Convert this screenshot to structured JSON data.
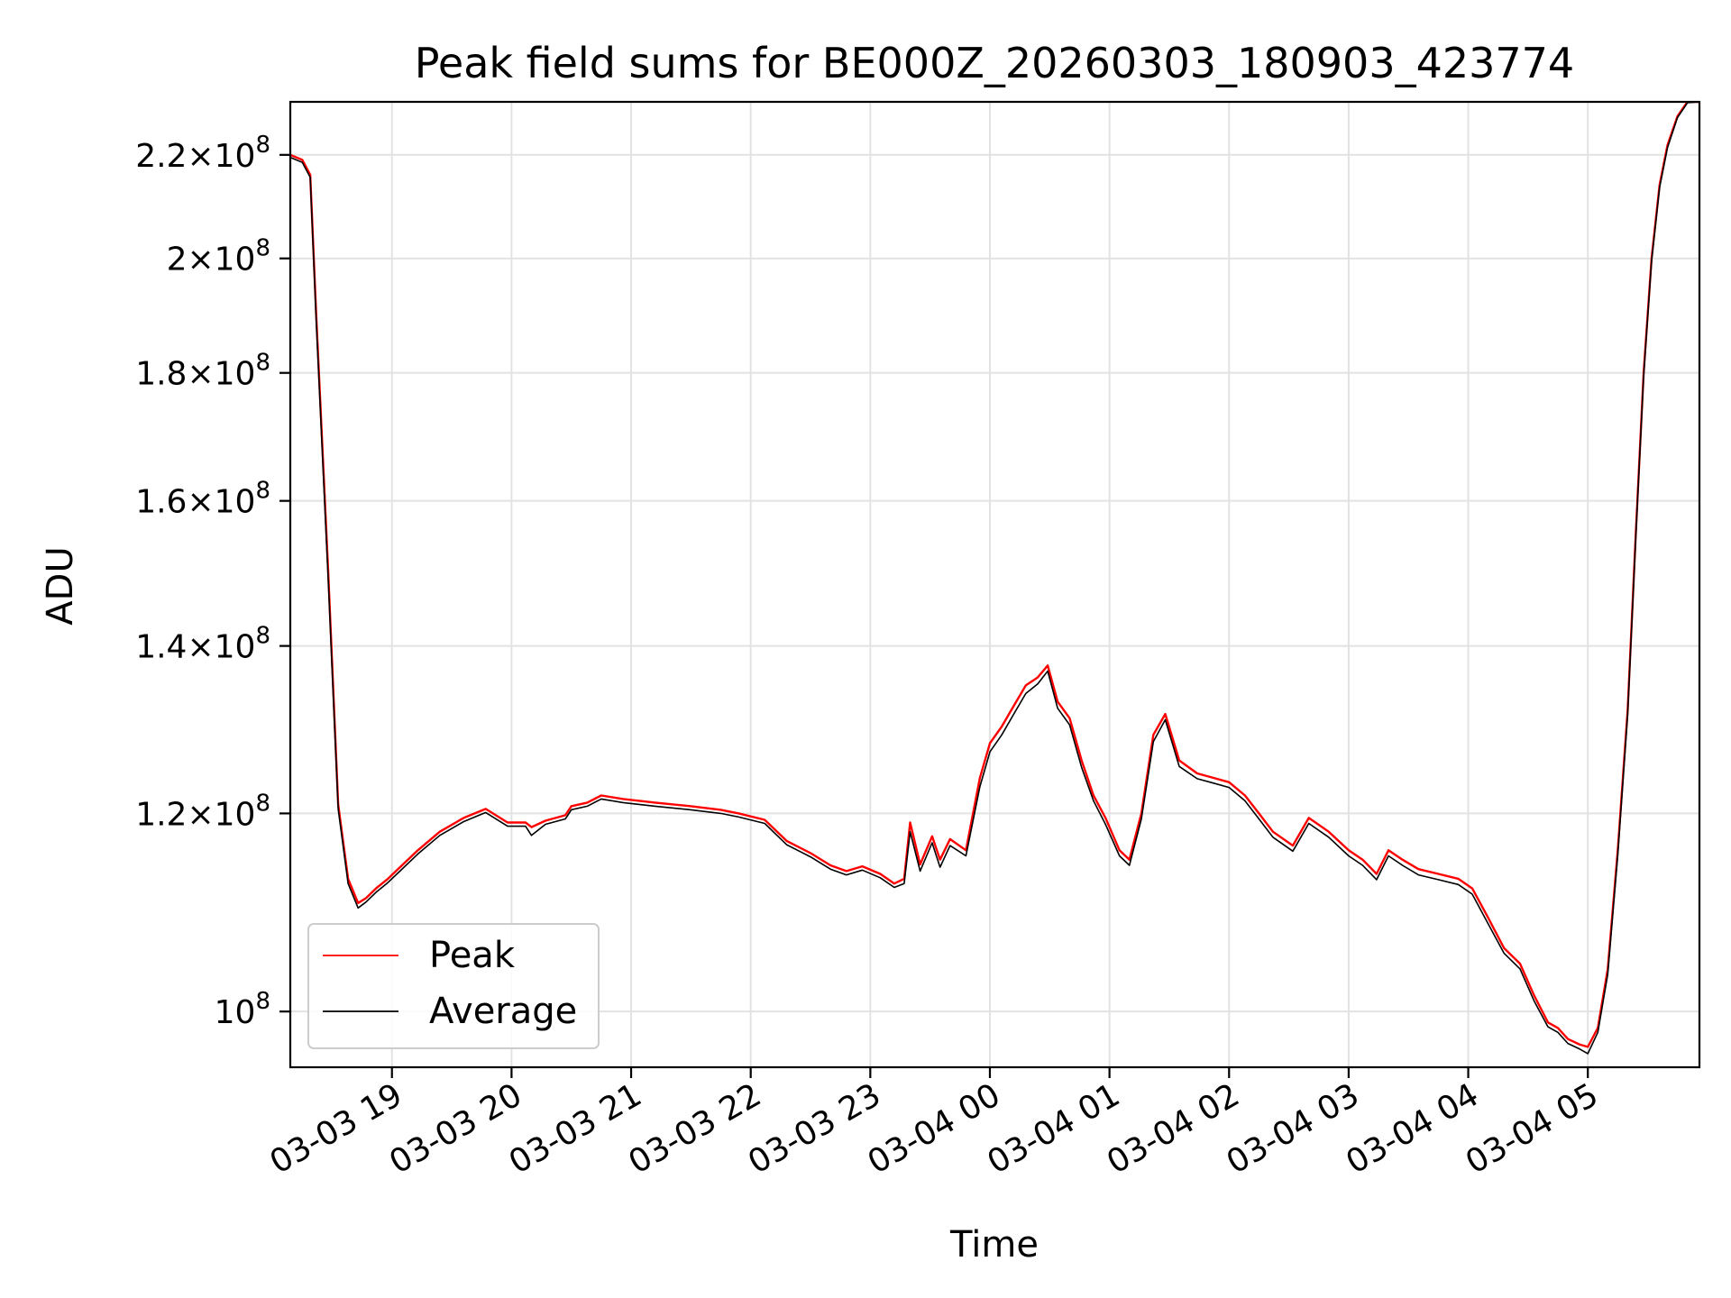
{
  "chart_data": {
    "type": "line",
    "title": "Peak field sums for BE000Z_20260303_180903_423774",
    "xlabel": "Time",
    "ylabel": "ADU",
    "x_axis_type": "datetime",
    "xlim": [
      "2026-03-03 18:09",
      "2026-03-04 05:56"
    ],
    "ylim": [
      95000000,
      231000000
    ],
    "y_scale": "log",
    "grid": true,
    "legend_position": "lower-left",
    "x_ticks": [
      {
        "value": "2026-03-03 19:00",
        "label": "03-03 19"
      },
      {
        "value": "2026-03-03 20:00",
        "label": "03-03 20"
      },
      {
        "value": "2026-03-03 21:00",
        "label": "03-03 21"
      },
      {
        "value": "2026-03-03 22:00",
        "label": "03-03 22"
      },
      {
        "value": "2026-03-03 23:00",
        "label": "03-03 23"
      },
      {
        "value": "2026-03-04 00:00",
        "label": "03-04 00"
      },
      {
        "value": "2026-03-04 01:00",
        "label": "03-04 01"
      },
      {
        "value": "2026-03-04 02:00",
        "label": "03-04 02"
      },
      {
        "value": "2026-03-04 03:00",
        "label": "03-04 03"
      },
      {
        "value": "2026-03-04 04:00",
        "label": "03-04 04"
      },
      {
        "value": "2026-03-04 05:00",
        "label": "03-04 05"
      }
    ],
    "y_ticks": [
      {
        "value": 100000000,
        "mantissa": "",
        "exponent": "8"
      },
      {
        "value": 120000000,
        "mantissa": "1.2",
        "exponent": "8"
      },
      {
        "value": 140000000,
        "mantissa": "1.4",
        "exponent": "8"
      },
      {
        "value": 160000000,
        "mantissa": "1.6",
        "exponent": "8"
      },
      {
        "value": 180000000,
        "mantissa": "1.8",
        "exponent": "8"
      },
      {
        "value": 200000000,
        "mantissa": "2",
        "exponent": "8"
      },
      {
        "value": 220000000,
        "mantissa": "2.2",
        "exponent": "8"
      }
    ],
    "series": [
      {
        "name": "Peak",
        "color": "#ff0000",
        "x": [
          "2026-03-03 18:09",
          "2026-03-03 18:15",
          "2026-03-03 18:19",
          "2026-03-03 18:22",
          "2026-03-03 18:28",
          "2026-03-03 18:33",
          "2026-03-03 18:38",
          "2026-03-03 18:43",
          "2026-03-03 18:47",
          "2026-03-03 18:52",
          "2026-03-03 18:58",
          "2026-03-03 19:03",
          "2026-03-03 19:13",
          "2026-03-03 19:24",
          "2026-03-03 19:36",
          "2026-03-03 19:47",
          "2026-03-03 19:58",
          "2026-03-03 20:07",
          "2026-03-03 20:10",
          "2026-03-03 20:17",
          "2026-03-03 20:27",
          "2026-03-03 20:30",
          "2026-03-03 20:38",
          "2026-03-03 20:45",
          "2026-03-03 20:56",
          "2026-03-03 21:12",
          "2026-03-03 21:30",
          "2026-03-03 21:45",
          "2026-03-03 21:54",
          "2026-03-03 22:07",
          "2026-03-03 22:18",
          "2026-03-03 22:30",
          "2026-03-03 22:40",
          "2026-03-03 22:48",
          "2026-03-03 22:56",
          "2026-03-03 23:05",
          "2026-03-03 23:12",
          "2026-03-03 23:17",
          "2026-03-03 23:20",
          "2026-03-03 23:25",
          "2026-03-03 23:31",
          "2026-03-03 23:35",
          "2026-03-03 23:40",
          "2026-03-03 23:48",
          "2026-03-03 23:55",
          "2026-03-04 00:00",
          "2026-03-04 00:06",
          "2026-03-04 00:12",
          "2026-03-04 00:18",
          "2026-03-04 00:24",
          "2026-03-04 00:29",
          "2026-03-04 00:34",
          "2026-03-04 00:40",
          "2026-03-04 00:46",
          "2026-03-04 00:52",
          "2026-03-04 00:58",
          "2026-03-04 01:05",
          "2026-03-04 01:10",
          "2026-03-04 01:16",
          "2026-03-04 01:22",
          "2026-03-04 01:28",
          "2026-03-04 01:35",
          "2026-03-04 01:44",
          "2026-03-04 01:52",
          "2026-03-04 02:00",
          "2026-03-04 02:08",
          "2026-03-04 02:15",
          "2026-03-04 02:22",
          "2026-03-04 02:32",
          "2026-03-04 02:40",
          "2026-03-04 02:50",
          "2026-03-04 03:00",
          "2026-03-04 03:07",
          "2026-03-04 03:14",
          "2026-03-04 03:20",
          "2026-03-04 03:27",
          "2026-03-04 03:35",
          "2026-03-04 03:45",
          "2026-03-04 03:55",
          "2026-03-04 04:02",
          "2026-03-04 04:10",
          "2026-03-04 04:18",
          "2026-03-04 04:26",
          "2026-03-04 04:33",
          "2026-03-04 04:40",
          "2026-03-04 04:45",
          "2026-03-04 04:50",
          "2026-03-04 04:56",
          "2026-03-04 05:00",
          "2026-03-04 05:05",
          "2026-03-04 05:10",
          "2026-03-04 05:15",
          "2026-03-04 05:20",
          "2026-03-04 05:24",
          "2026-03-04 05:28",
          "2026-03-04 05:32",
          "2026-03-04 05:36",
          "2026-03-04 05:40",
          "2026-03-04 05:45",
          "2026-03-04 05:50",
          "2026-03-04 05:56"
        ],
        "y": [
          220000000,
          219000000,
          216000000,
          190000000,
          150000000,
          121000000,
          113000000,
          110500000,
          111000000,
          112000000,
          113000000,
          114000000,
          116000000,
          118000000,
          119500000,
          120500000,
          119000000,
          119000000,
          118500000,
          119200000,
          119800000,
          120800000,
          121200000,
          122000000,
          121600000,
          121200000,
          120800000,
          120400000,
          120000000,
          119300000,
          117000000,
          115700000,
          114400000,
          113800000,
          114300000,
          113500000,
          112500000,
          113000000,
          119000000,
          114500000,
          117500000,
          115000000,
          117200000,
          116000000,
          124000000,
          128000000,
          130000000,
          132500000,
          135000000,
          136000000,
          137500000,
          133000000,
          131000000,
          126000000,
          122000000,
          119500000,
          116000000,
          115000000,
          120000000,
          129000000,
          131500000,
          126000000,
          124500000,
          124000000,
          123500000,
          122000000,
          120000000,
          118000000,
          116500000,
          119500000,
          118000000,
          116000000,
          115000000,
          113500000,
          116000000,
          115000000,
          114000000,
          113500000,
          113000000,
          112000000,
          109000000,
          106000000,
          104500000,
          101500000,
          99000000,
          98500000,
          97500000,
          97000000,
          96800000,
          98500000,
          104000000,
          116000000,
          132000000,
          155000000,
          180000000,
          200000000,
          214000000,
          222000000,
          228000000,
          231000000,
          231000000
        ]
      },
      {
        "name": "Average",
        "color": "#000000",
        "x": [
          "2026-03-03 18:09",
          "2026-03-03 18:15",
          "2026-03-03 18:19",
          "2026-03-03 18:22",
          "2026-03-03 18:28",
          "2026-03-03 18:33",
          "2026-03-03 18:38",
          "2026-03-03 18:43",
          "2026-03-03 18:47",
          "2026-03-03 18:52",
          "2026-03-03 18:58",
          "2026-03-03 19:03",
          "2026-03-03 19:13",
          "2026-03-03 19:24",
          "2026-03-03 19:36",
          "2026-03-03 19:47",
          "2026-03-03 19:58",
          "2026-03-03 20:07",
          "2026-03-03 20:10",
          "2026-03-03 20:17",
          "2026-03-03 20:27",
          "2026-03-03 20:30",
          "2026-03-03 20:38",
          "2026-03-03 20:45",
          "2026-03-03 20:56",
          "2026-03-03 21:12",
          "2026-03-03 21:30",
          "2026-03-03 21:45",
          "2026-03-03 21:54",
          "2026-03-03 22:07",
          "2026-03-03 22:18",
          "2026-03-03 22:30",
          "2026-03-03 22:40",
          "2026-03-03 22:48",
          "2026-03-03 22:56",
          "2026-03-03 23:05",
          "2026-03-03 23:12",
          "2026-03-03 23:17",
          "2026-03-03 23:20",
          "2026-03-03 23:25",
          "2026-03-03 23:31",
          "2026-03-03 23:35",
          "2026-03-03 23:40",
          "2026-03-03 23:48",
          "2026-03-03 23:55",
          "2026-03-04 00:00",
          "2026-03-04 00:06",
          "2026-03-04 00:12",
          "2026-03-04 00:18",
          "2026-03-04 00:24",
          "2026-03-04 00:29",
          "2026-03-04 00:34",
          "2026-03-04 00:40",
          "2026-03-04 00:46",
          "2026-03-04 00:52",
          "2026-03-04 00:58",
          "2026-03-04 01:05",
          "2026-03-04 01:10",
          "2026-03-04 01:16",
          "2026-03-04 01:22",
          "2026-03-04 01:28",
          "2026-03-04 01:35",
          "2026-03-04 01:44",
          "2026-03-04 01:52",
          "2026-03-04 02:00",
          "2026-03-04 02:08",
          "2026-03-04 02:15",
          "2026-03-04 02:22",
          "2026-03-04 02:32",
          "2026-03-04 02:40",
          "2026-03-04 02:50",
          "2026-03-04 03:00",
          "2026-03-04 03:07",
          "2026-03-04 03:14",
          "2026-03-04 03:20",
          "2026-03-04 03:27",
          "2026-03-04 03:35",
          "2026-03-04 03:45",
          "2026-03-04 03:55",
          "2026-03-04 04:02",
          "2026-03-04 04:10",
          "2026-03-04 04:18",
          "2026-03-04 04:26",
          "2026-03-04 04:33",
          "2026-03-04 04:40",
          "2026-03-04 04:45",
          "2026-03-04 04:50",
          "2026-03-04 04:56",
          "2026-03-04 05:00",
          "2026-03-04 05:05",
          "2026-03-04 05:10",
          "2026-03-04 05:15",
          "2026-03-04 05:20",
          "2026-03-04 05:24",
          "2026-03-04 05:28",
          "2026-03-04 05:32",
          "2026-03-04 05:36",
          "2026-03-04 05:40",
          "2026-03-04 05:45",
          "2026-03-04 05:50",
          "2026-03-04 05:56"
        ],
        "y": [
          219500000,
          218500000,
          215500000,
          189000000,
          149000000,
          120500000,
          112500000,
          110000000,
          110600000,
          111600000,
          112600000,
          113600000,
          115600000,
          117600000,
          119100000,
          120100000,
          118600000,
          118600000,
          117600000,
          118800000,
          119400000,
          120400000,
          120800000,
          121600000,
          121200000,
          120800000,
          120400000,
          120000000,
          119600000,
          118900000,
          116600000,
          115300000,
          114000000,
          113400000,
          113900000,
          113100000,
          112100000,
          112500000,
          118000000,
          113800000,
          116800000,
          114200000,
          116500000,
          115400000,
          123000000,
          127000000,
          129000000,
          131500000,
          134000000,
          135200000,
          136800000,
          132200000,
          130200000,
          125200000,
          121400000,
          118800000,
          115400000,
          114400000,
          119400000,
          128200000,
          130800000,
          125300000,
          123900000,
          123400000,
          122900000,
          121400000,
          119400000,
          117400000,
          115900000,
          118900000,
          117400000,
          115400000,
          114400000,
          112900000,
          115400000,
          114400000,
          113400000,
          112900000,
          112400000,
          111400000,
          108400000,
          105500000,
          104000000,
          101000000,
          98600000,
          98100000,
          97100000,
          96600000,
          96200000,
          98100000,
          103500000,
          115500000,
          131500000,
          154500000,
          179500000,
          199500000,
          213500000,
          221500000,
          227700000,
          230800000,
          231000000
        ]
      }
    ]
  }
}
